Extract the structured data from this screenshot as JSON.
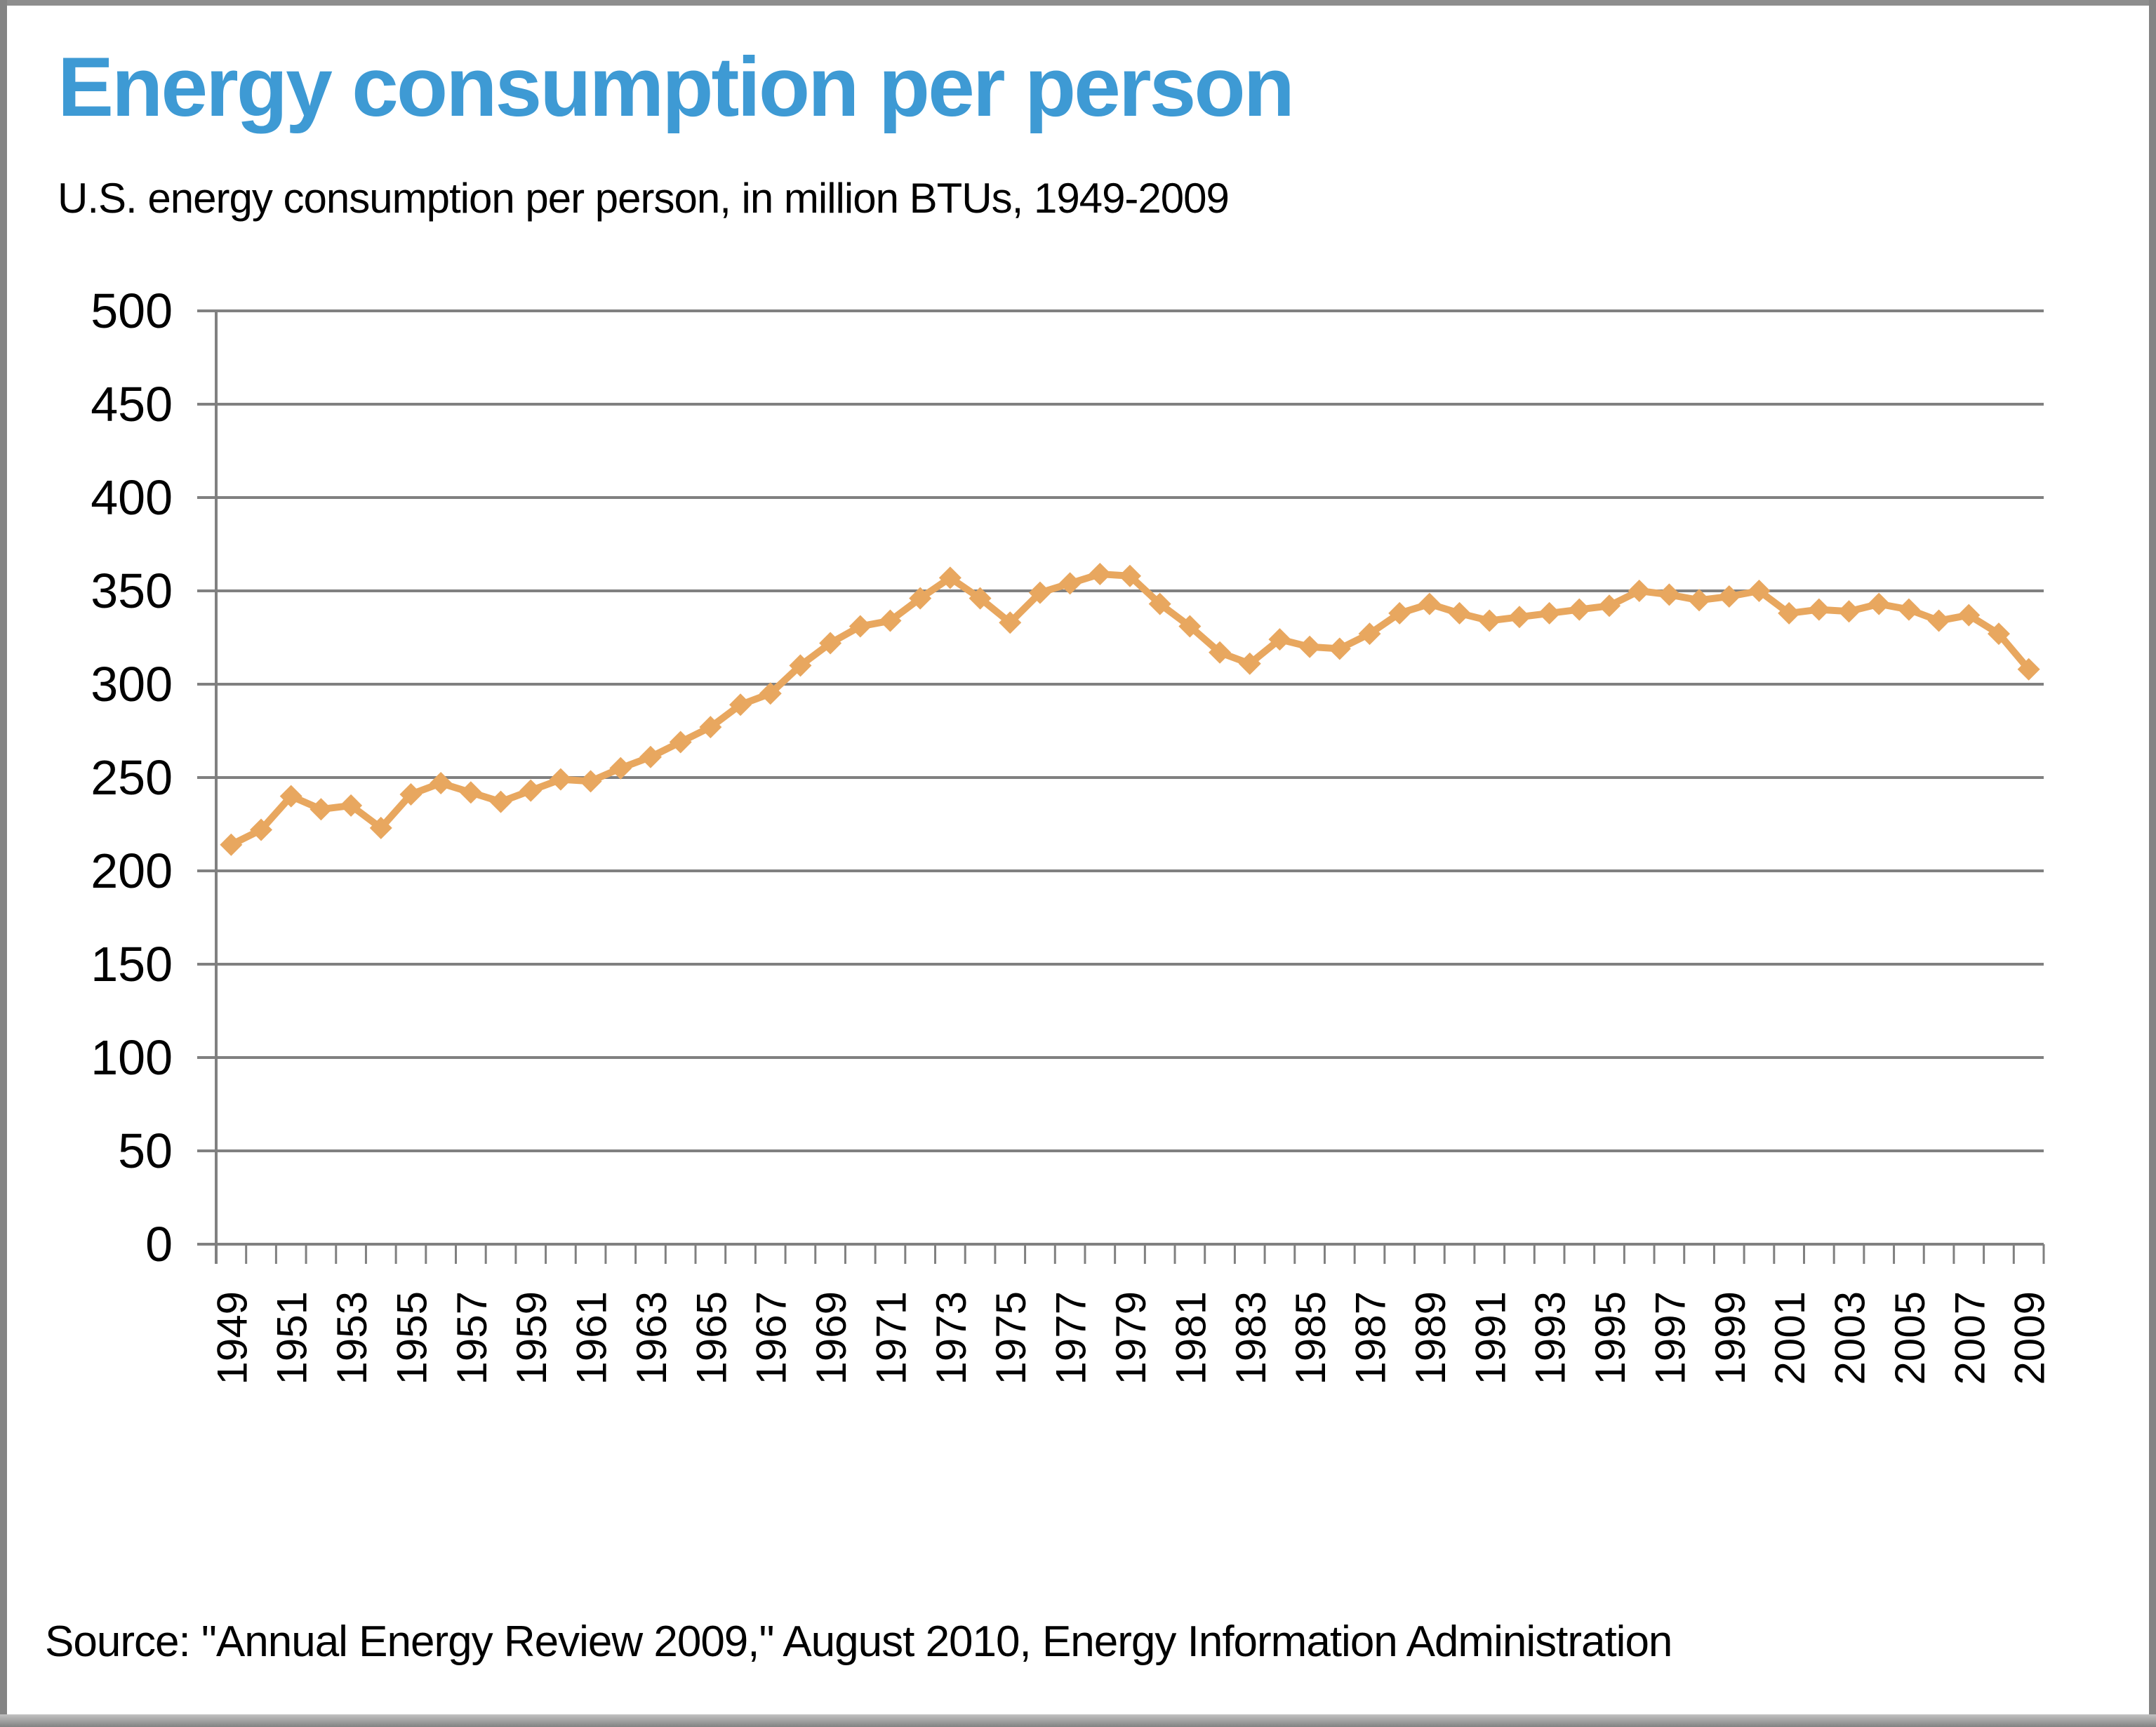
{
  "header": {
    "title": "Energy consumption per person",
    "subtitle": "U.S. energy consumption per person, in million BTUs, 1949-2009"
  },
  "footer": {
    "source": "Source: \"Annual Energy Review 2009,\" August 2010, Energy Information Administration"
  },
  "colors": {
    "title_blue": "#3E9AD4",
    "series_orange": "#E8A75F",
    "gridline_gray": "#808080",
    "axis_text_black": "#000000"
  },
  "chart_data": {
    "type": "line",
    "title": "Energy consumption per person",
    "subtitle": "U.S. energy consumption per person, in million BTUs, 1949-2009",
    "series_name": "U.S. energy consumption per person (million BTUs)",
    "marker": "diamond",
    "grid": "horizontal",
    "legend": "none",
    "xlabel": "",
    "ylabel": "",
    "ylim": [
      0,
      500
    ],
    "y_ticks": [
      0,
      50,
      100,
      150,
      200,
      250,
      300,
      350,
      400,
      450,
      500
    ],
    "x": [
      1949,
      1950,
      1951,
      1952,
      1953,
      1954,
      1955,
      1956,
      1957,
      1958,
      1959,
      1960,
      1961,
      1962,
      1963,
      1964,
      1965,
      1966,
      1967,
      1968,
      1969,
      1970,
      1971,
      1972,
      1973,
      1974,
      1975,
      1976,
      1977,
      1978,
      1979,
      1980,
      1981,
      1982,
      1983,
      1984,
      1985,
      1986,
      1987,
      1988,
      1989,
      1990,
      1991,
      1992,
      1993,
      1994,
      1995,
      1996,
      1997,
      1998,
      1999,
      2000,
      2001,
      2002,
      2003,
      2004,
      2005,
      2006,
      2007,
      2008,
      2009
    ],
    "values": [
      214,
      222,
      240,
      233,
      235,
      223,
      241,
      247,
      242,
      237,
      243,
      249,
      248,
      255,
      261,
      269,
      277,
      289,
      295,
      310,
      322,
      331,
      334,
      346,
      357,
      346,
      333,
      349,
      354,
      359,
      358,
      343,
      331,
      317,
      311,
      324,
      320,
      319,
      327,
      338,
      343,
      338,
      334,
      336,
      338,
      340,
      342,
      350,
      348,
      345,
      347,
      350,
      338,
      340,
      339,
      343,
      340,
      334,
      337,
      327,
      308
    ],
    "x_tick_labels": [
      "1949",
      "1951",
      "1953",
      "1955",
      "1957",
      "1959",
      "1961",
      "1963",
      "1965",
      "1967",
      "1969",
      "1971",
      "1973",
      "1975",
      "1977",
      "1979",
      "1981",
      "1983",
      "1985",
      "1987",
      "1989",
      "1991",
      "1993",
      "1995",
      "1997",
      "1999",
      "2001",
      "2003",
      "2005",
      "2007",
      "2009"
    ]
  }
}
